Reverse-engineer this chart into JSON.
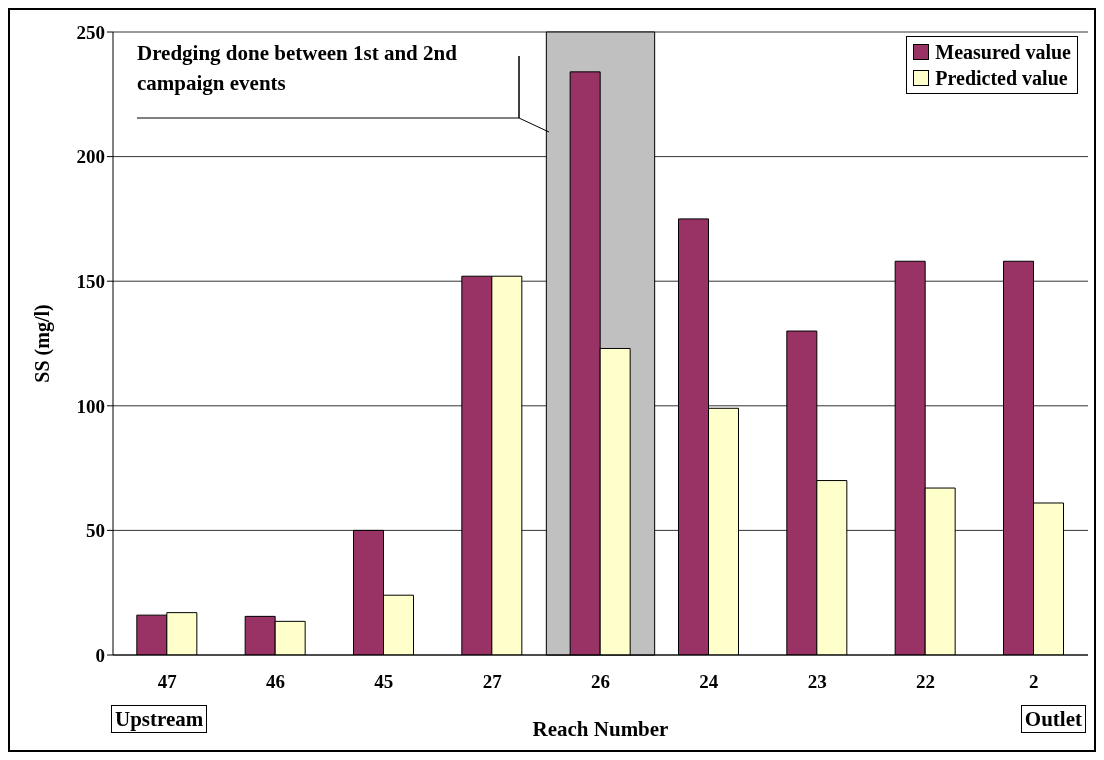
{
  "chart_data": {
    "type": "bar",
    "xlabel": "Reach Number",
    "ylabel": "SS (mg/l)",
    "categories": [
      "47",
      "46",
      "45",
      "27",
      "26",
      "24",
      "23",
      "22",
      "2"
    ],
    "series": [
      {
        "name": "Measured value",
        "color": "#993366",
        "values": [
          16,
          15.5,
          50,
          152,
          234,
          175,
          130,
          158,
          158
        ]
      },
      {
        "name": "Predicted value",
        "color": "#ffffcc",
        "values": [
          17,
          13.5,
          24,
          152,
          123,
          99,
          70,
          67,
          61
        ]
      }
    ],
    "ylim": [
      0,
      250
    ],
    "yticks": [
      0,
      50,
      100,
      150,
      200,
      250
    ],
    "grid": "y",
    "legend": "top right",
    "bands": [
      {
        "axis": "x",
        "from": "26",
        "to": "26",
        "color": "#c0c0c0"
      }
    ],
    "annotations": [
      "Dredging done between 1st and 2nd campaign events",
      "Upstream",
      "Outlet"
    ]
  }
}
